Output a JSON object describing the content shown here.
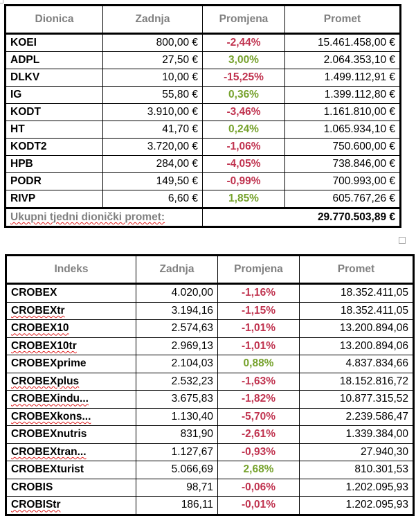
{
  "stocks": {
    "headers": [
      "Dionica",
      "Zadnja",
      "Promjena",
      "Promet"
    ],
    "rows": [
      {
        "name": "KOEI",
        "last": "800,00 €",
        "change": "-2,44%",
        "dir": "neg",
        "turnover": "15.461.458,00 €"
      },
      {
        "name": "ADPL",
        "last": "27,50 €",
        "change": "3,00%",
        "dir": "pos",
        "turnover": "2.064.353,10 €"
      },
      {
        "name": "DLKV",
        "last": "10,00 €",
        "change": "-15,25%",
        "dir": "neg",
        "turnover": "1.499.112,91 €"
      },
      {
        "name": "IG",
        "last": "55,80 €",
        "change": "0,36%",
        "dir": "pos",
        "turnover": "1.399.112,80 €"
      },
      {
        "name": "KODT",
        "last": "3.910,00 €",
        "change": "-3,46%",
        "dir": "neg",
        "turnover": "1.161.810,00 €"
      },
      {
        "name": "HT",
        "last": "41,70 €",
        "change": "0,24%",
        "dir": "pos",
        "turnover": "1.065.934,10 €"
      },
      {
        "name": "KODT2",
        "last": "3.720,00 €",
        "change": "-1,06%",
        "dir": "neg",
        "turnover": "750.600,00 €"
      },
      {
        "name": "HPB",
        "last": "284,00 €",
        "change": "-4,05%",
        "dir": "neg",
        "turnover": "738.846,00 €"
      },
      {
        "name": "PODR",
        "last": "149,50 €",
        "change": "-0,99%",
        "dir": "neg",
        "turnover": "700.993,00 €"
      },
      {
        "name": "RIVP",
        "last": "6,60 €",
        "change": "1,85%",
        "dir": "pos",
        "turnover": "605.767,26 €"
      }
    ],
    "total_label": "Ukupni tjedni dionički promet:",
    "total_value": "29.770.503,89 €"
  },
  "indices": {
    "headers": [
      "Indeks",
      "Zadnja",
      "Promjena",
      "Promet"
    ],
    "rows": [
      {
        "name": "CROBEX",
        "last": "4.020,00",
        "change": "-1,16%",
        "dir": "neg",
        "turnover": "18.352.411,05",
        "spell": false
      },
      {
        "name": "CROBEXtr",
        "last": "3.194,16",
        "change": "-1,15%",
        "dir": "neg",
        "turnover": "18.352.411,05",
        "spell": true
      },
      {
        "name": "CROBEX10",
        "last": "2.574,63",
        "change": "-1,01%",
        "dir": "neg",
        "turnover": "13.200.894,06",
        "spell": true
      },
      {
        "name": "CROBEX10tr",
        "last": "2.969,13",
        "change": "-1,01%",
        "dir": "neg",
        "turnover": "13.200.894,06",
        "spell": true
      },
      {
        "name": "CROBEXprime",
        "last": "2.104,03",
        "change": "0,88%",
        "dir": "pos",
        "turnover": "4.837.834,66",
        "spell": false
      },
      {
        "name": "CROBEXplus",
        "last": "2.532,23",
        "change": "-1,63%",
        "dir": "neg",
        "turnover": "18.152.816,72",
        "spell": true
      },
      {
        "name": "CROBEXindu...",
        "last": "3.675,83",
        "change": "-1,82%",
        "dir": "neg",
        "turnover": "10.877.315,52",
        "spell": true
      },
      {
        "name": "CROBEXkons...",
        "last": "1.130,40",
        "change": "-5,70%",
        "dir": "neg",
        "turnover": "2.239.586,47",
        "spell": true
      },
      {
        "name": "CROBEXnutris",
        "last": "831,90",
        "change": "-2,61%",
        "dir": "neg",
        "turnover": "1.339.384,00",
        "spell": false
      },
      {
        "name": "CROBEXtran...",
        "last": "1.127,67",
        "change": "-0,93%",
        "dir": "neg",
        "turnover": "27.940,30",
        "spell": true
      },
      {
        "name": "CROBEXturist",
        "last": "5.066,69",
        "change": "2,68%",
        "dir": "pos",
        "turnover": "810.301,53",
        "spell": false
      },
      {
        "name": "CROBIS",
        "last": "98,71",
        "change": "-0,06%",
        "dir": "neg",
        "turnover": "1.202.095,93",
        "spell": false
      },
      {
        "name": "CROBIStr",
        "last": "186,11",
        "change": "-0,01%",
        "dir": "neg",
        "turnover": "1.202.095,93",
        "spell": true
      }
    ]
  }
}
